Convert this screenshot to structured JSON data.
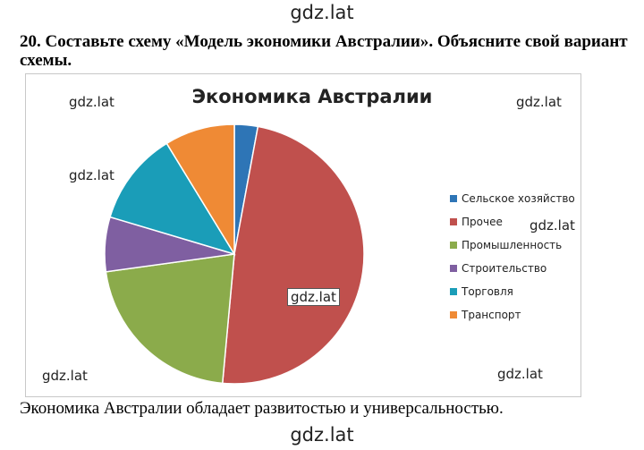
{
  "watermark": "gdz.lat",
  "task_text": "20. Составьте схему «Модель экономики Австралии». Объясните свой вариант схемы.",
  "caption": "Экономика Австралии обладает развитостью и универсальностью.",
  "chart_data": {
    "type": "pie",
    "title": "Экономика Австралии",
    "categories": [
      "Сельское хозяйство",
      "Прочее",
      "Промышленность",
      "Строительство",
      "Торговля",
      "Транспорт"
    ],
    "values": [
      3,
      50,
      22,
      7,
      12,
      9
    ],
    "colors": [
      "#2e75b6",
      "#c0504d",
      "#8bab4b",
      "#7f5fa1",
      "#1a9db8",
      "#ef8a35"
    ],
    "legend_position": "right"
  }
}
